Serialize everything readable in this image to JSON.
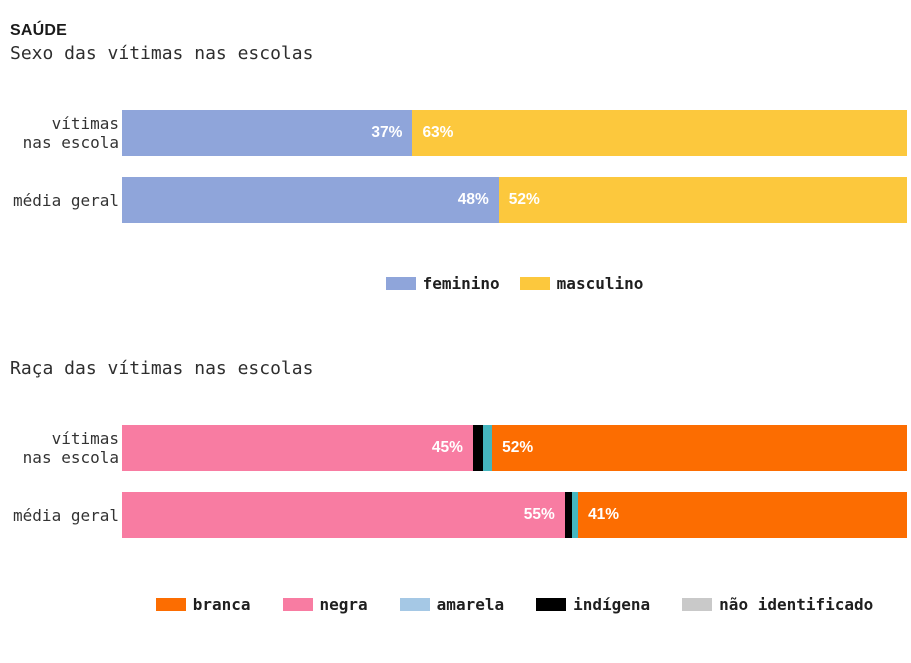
{
  "page": {
    "header": "SAÚDE"
  },
  "colors": {
    "background": "#ffffff",
    "header_text": "#1a1a1a",
    "body_text": "#333333",
    "bar_value_text": "#ffffff",
    "feminino": "#8fa5da",
    "masculino": "#fcc83d",
    "branca": "#fc6d01",
    "negra": "#f87ca2",
    "amarela_bar": "#45b6bf",
    "amarela_legend": "#a5c8e5",
    "indigena": "#000000",
    "nao_identificado": "#c9c9c9"
  },
  "chart_data": [
    {
      "type": "bar",
      "orientation": "horizontal",
      "stacked": true,
      "title": "Sexo das vítimas nas escolas",
      "categories": [
        "vítimas\nnas escola",
        "média geral"
      ],
      "value_suffix": "%",
      "xlim": [
        0,
        100
      ],
      "grid": false,
      "legend_position": "bottom-center",
      "series": [
        {
          "name": "feminino",
          "color": "#8fa5da",
          "values": [
            37,
            48
          ]
        },
        {
          "name": "masculino",
          "color": "#fcc83d",
          "values": [
            63,
            52
          ]
        }
      ],
      "legend": [
        {
          "label": "feminino",
          "color": "#8fa5da"
        },
        {
          "label": "masculino",
          "color": "#fcc83d"
        }
      ]
    },
    {
      "type": "bar",
      "orientation": "horizontal",
      "stacked": true,
      "title": "Raça das vítimas nas escolas",
      "categories": [
        "vítimas\nnas escola",
        "média geral"
      ],
      "value_suffix": "%",
      "xlim": [
        0,
        100
      ],
      "grid": false,
      "legend_position": "bottom-center",
      "series": [
        {
          "name": "negra",
          "color": "#f87ca2",
          "values": [
            45,
            55
          ],
          "display_widths": [
            44.7,
            56.4
          ]
        },
        {
          "name": "indígena",
          "color": "#000000",
          "values": [
            1.3,
            0.9
          ],
          "display_widths": [
            1.3,
            0.9
          ],
          "show_label": false
        },
        {
          "name": "amarela",
          "color": "#45b6bf",
          "values": [
            1.2,
            0.8
          ],
          "display_widths": [
            1.15,
            0.8
          ],
          "show_label": false
        },
        {
          "name": "branca",
          "color": "#fc6d01",
          "values": [
            52,
            41
          ],
          "display_widths": [
            52.85,
            41.9
          ]
        }
      ],
      "legend": [
        {
          "label": "branca",
          "color": "#fc6d01"
        },
        {
          "label": "negra",
          "color": "#f87ca2"
        },
        {
          "label": "amarela",
          "color": "#a5c8e5"
        },
        {
          "label": "indígena",
          "color": "#000000"
        },
        {
          "label": "não identificado",
          "color": "#c9c9c9"
        }
      ]
    }
  ]
}
